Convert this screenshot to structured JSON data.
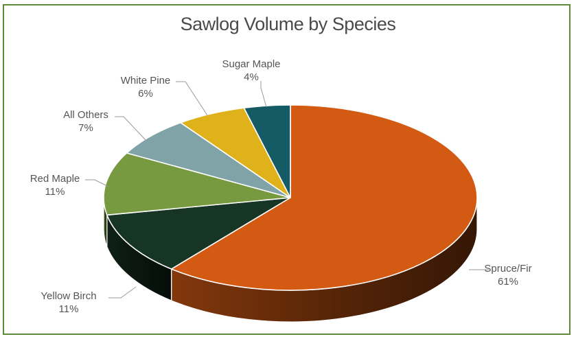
{
  "chart_data": {
    "type": "pie",
    "title": "Sawlog Volume by Species",
    "slices": [
      {
        "label": "Spruce/Fir",
        "value": 61,
        "display": "61%"
      },
      {
        "label": "Yellow Birch",
        "value": 11,
        "display": "11%"
      },
      {
        "label": "Red Maple",
        "value": 11,
        "display": "11%"
      },
      {
        "label": "All Others",
        "value": 7,
        "display": "7%"
      },
      {
        "label": "White Pine",
        "value": 6,
        "display": "6%"
      },
      {
        "label": "Sugar Maple",
        "value": 4,
        "display": "4%"
      }
    ],
    "colors": {
      "Spruce/Fir": "#d35a13",
      "Yellow Birch": "#173524",
      "Red Maple": "#77993f",
      "All Others": "#7fa3a6",
      "White Pine": "#dfb21b",
      "Sugar Maple": "#155b66"
    },
    "frame_color": "#5f8a3a"
  }
}
